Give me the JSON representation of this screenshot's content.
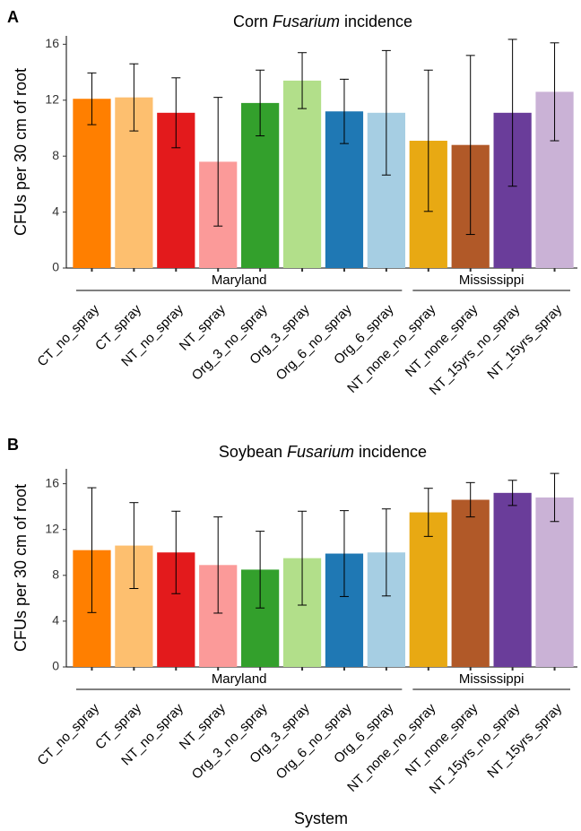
{
  "chart_data": [
    {
      "type": "bar",
      "panel": "A",
      "title": [
        "Corn",
        "Fusarium",
        "incidence"
      ],
      "ylabel": "CFUs per 30 cm of root",
      "categories": [
        "CT_no_spray",
        "CT_spray",
        "NT_no_spray",
        "NT_spray",
        "Org_3_no_spray",
        "Org_3_spray",
        "Org_6_no_spray",
        "Org_6_spray",
        "NT_none_no_spray",
        "NT_none_spray",
        "NT_15yrs_no_spray",
        "NT_15yrs_spray"
      ],
      "values": [
        12.1,
        12.2,
        11.1,
        7.6,
        11.8,
        13.4,
        11.2,
        11.1,
        9.1,
        8.8,
        11.1,
        12.6
      ],
      "errors": [
        1.85,
        2.4,
        2.5,
        4.6,
        2.35,
        2.0,
        2.3,
        4.45,
        5.05,
        6.4,
        5.25,
        3.5
      ],
      "colors": [
        "#ff7f00",
        "#fdbf6f",
        "#e31a1c",
        "#fb9a99",
        "#33a02c",
        "#b2df8a",
        "#1f78b4",
        "#a6cee3",
        "#e8a913",
        "#b15928",
        "#6a3d9a",
        "#cab2d6"
      ],
      "groups": [
        {
          "name": "Maryland",
          "count": 8
        },
        {
          "name": "Mississippi",
          "count": 4
        }
      ],
      "ylim": [
        0,
        16.6
      ],
      "yticks": [
        0,
        4,
        8,
        12,
        16
      ]
    },
    {
      "type": "bar",
      "panel": "B",
      "title": [
        "Soybean",
        "Fusarium",
        "incidence"
      ],
      "ylabel": "CFUs per 30 cm of root",
      "xlabel": "System",
      "categories": [
        "CT_no_spray",
        "CT_spray",
        "NT_no_spray",
        "NT_spray",
        "Org_3_no_spray",
        "Org_3_spray",
        "Org_6_no_spray",
        "Org_6_spray",
        "NT_none_no_spray",
        "NT_none_spray",
        "NT_15yrs_no_spray",
        "NT_15yrs_spray"
      ],
      "values": [
        10.2,
        10.6,
        10.0,
        8.9,
        8.5,
        9.5,
        9.9,
        10.0,
        13.5,
        14.6,
        15.2,
        14.8
      ],
      "errors": [
        5.45,
        3.75,
        3.6,
        4.2,
        3.35,
        4.1,
        3.75,
        3.8,
        2.1,
        1.5,
        1.1,
        2.1
      ],
      "colors": [
        "#ff7f00",
        "#fdbf6f",
        "#e31a1c",
        "#fb9a99",
        "#33a02c",
        "#b2df8a",
        "#1f78b4",
        "#a6cee3",
        "#e8a913",
        "#b15928",
        "#6a3d9a",
        "#cab2d6"
      ],
      "groups": [
        {
          "name": "Maryland",
          "count": 8
        },
        {
          "name": "Mississippi",
          "count": 4
        }
      ],
      "ylim": [
        0,
        17.3
      ],
      "yticks": [
        0,
        4,
        8,
        12,
        16
      ]
    }
  ]
}
